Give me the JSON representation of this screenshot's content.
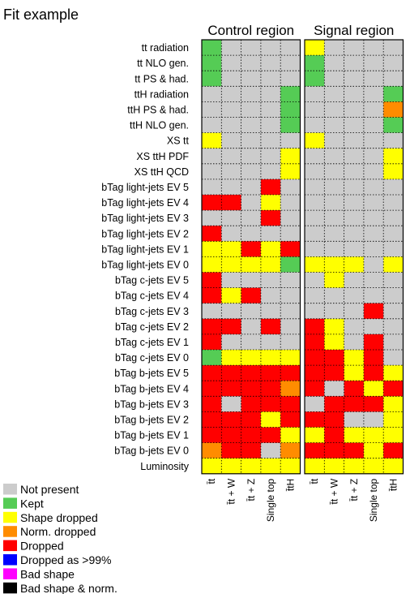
{
  "chart_data": {
    "type": "heatmap",
    "title": "Fit example",
    "panels": [
      {
        "title": "Control region",
        "columns": [
          "t̄t",
          "t̄t + W",
          "t̄t + Z",
          "Single top",
          "t̄tH"
        ]
      },
      {
        "title": "Signal region",
        "columns": [
          "t̄t",
          "t̄t + W",
          "t̄t + Z",
          "Single top",
          "t̄tH"
        ]
      }
    ],
    "rows": [
      "tt radiation",
      "tt NLO gen.",
      "tt PS & had.",
      "ttH radiation",
      "ttH PS & had.",
      "ttH NLO gen.",
      "XS tt",
      "XS ttH PDF",
      "XS ttH QCD",
      "bTag light-jets EV 5",
      "bTag light-jets EV 4",
      "bTag light-jets EV 3",
      "bTag light-jets EV 2",
      "bTag light-jets EV 1",
      "bTag light-jets EV 0",
      "bTag c-jets EV 5",
      "bTag c-jets EV 4",
      "bTag c-jets EV 3",
      "bTag c-jets EV 2",
      "bTag c-jets EV 1",
      "bTag c-jets EV 0",
      "bTag b-jets EV 5",
      "bTag b-jets EV 4",
      "bTag b-jets EV 3",
      "bTag b-jets EV 2",
      "bTag b-jets EV 1",
      "bTag b-jets EV 0",
      "Luminosity"
    ],
    "codes": {
      "N": "Not present",
      "K": "Kept",
      "S": "Shape dropped",
      "O": "Norm. dropped",
      "D": "Dropped",
      "B": "Dropped as >99%",
      "P": "Bad shape",
      "X": "Bad shape & norm."
    },
    "control_cells": [
      "KNNNN",
      "KNNNN",
      "KNNNN",
      "NNNNK",
      "NNNNK",
      "NNNNK",
      "SNNNN",
      "NNNNS",
      "NNNNS",
      "NNNDN",
      "DDNSN",
      "NNNDN",
      "DNNNN",
      "SSDSD",
      "SSSSK",
      "DNNNN",
      "DSDNN",
      "NNNNN",
      "DDNDN",
      "DNNNN",
      "KSSSS",
      "DDDDD",
      "DDDDO",
      "DNDDD",
      "DDDSD",
      "DDDDS",
      "ODDNO",
      "SSSSS"
    ],
    "signal_cells": [
      "SNNNN",
      "KNNNN",
      "KNNNN",
      "NNNNK",
      "NNNNO",
      "NNNNK",
      "SNNNN",
      "NNNNS",
      "NNNNS",
      "NNNNN",
      "NNNNN",
      "NNNNN",
      "NNNNN",
      "NNNNN",
      "SSSNS",
      "NSNNN",
      "NNNNN",
      "NNNDN",
      "DSNNN",
      "DSNDN",
      "DDSDN",
      "DDSDS",
      "DNDSD",
      "NDDDS",
      "DDNNS",
      "SDSSS",
      "DDDSD",
      "SSSSS"
    ],
    "legend": [
      {
        "label": "Not present",
        "color": "#cccccc"
      },
      {
        "label": "Kept",
        "color": "#55cc55"
      },
      {
        "label": "Shape dropped",
        "color": "#ffff00"
      },
      {
        "label": "Norm. dropped",
        "color": "#ff8c00"
      },
      {
        "label": "Dropped",
        "color": "#ff0000"
      },
      {
        "label": "Dropped as >99%",
        "color": "#0000ff"
      },
      {
        "label": "Bad shape",
        "color": "#ff00ff"
      },
      {
        "label": "Bad shape & norm.",
        "color": "#000000"
      }
    ],
    "colors": {
      "N": "#cccccc",
      "K": "#55cc55",
      "S": "#ffff00",
      "O": "#ff8c00",
      "D": "#ff0000",
      "B": "#0000ff",
      "P": "#ff00ff",
      "X": "#000000"
    }
  }
}
